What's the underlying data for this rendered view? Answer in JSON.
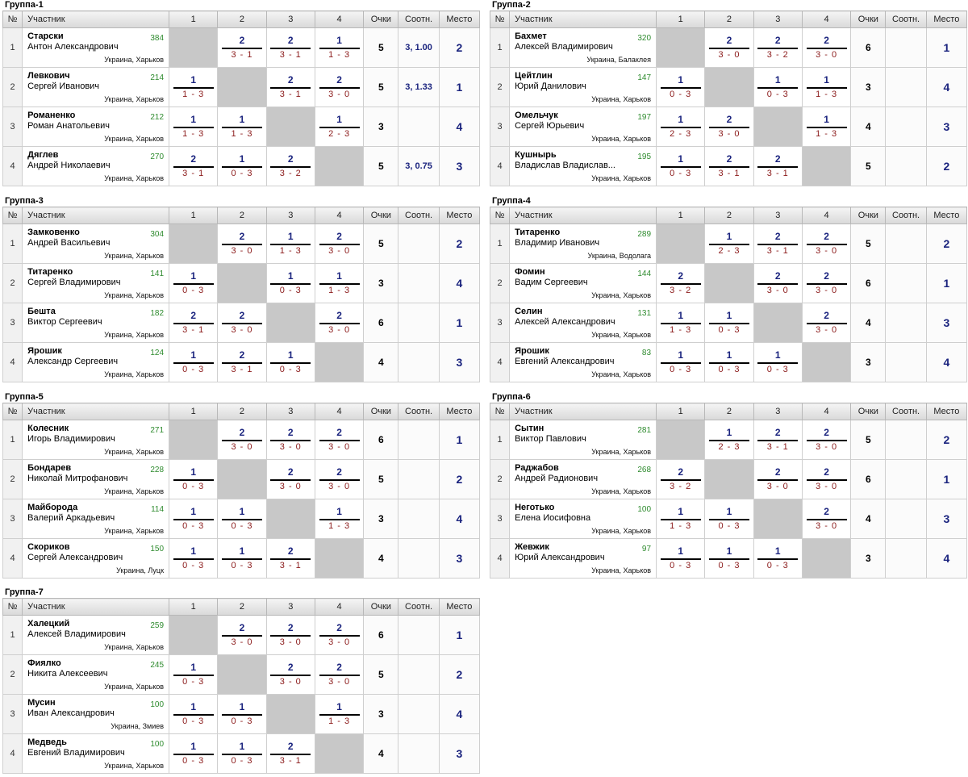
{
  "headers": {
    "num": "№",
    "participant": "Участник",
    "c1": "1",
    "c2": "2",
    "c3": "3",
    "c4": "4",
    "points": "Очки",
    "ratio": "Соотн.",
    "place": "Место"
  },
  "groups": [
    {
      "title": "Группа-1",
      "players": [
        {
          "num": "1",
          "surname": "Старски",
          "name": "Антон Александрович",
          "rating": "384",
          "city": "Украина, Харьков",
          "cells": [
            null,
            {
              "score": "2",
              "result": "3 - 1"
            },
            {
              "score": "2",
              "result": "3 - 1"
            },
            {
              "score": "1",
              "result": "1 - 3"
            }
          ],
          "points": "5",
          "ratio": "3, 1.00",
          "place": "2"
        },
        {
          "num": "2",
          "surname": "Левкович",
          "name": "Сергей Иванович",
          "rating": "214",
          "city": "Украина, Харьков",
          "cells": [
            {
              "score": "1",
              "result": "1 - 3"
            },
            null,
            {
              "score": "2",
              "result": "3 - 1"
            },
            {
              "score": "2",
              "result": "3 - 0"
            }
          ],
          "points": "5",
          "ratio": "3, 1.33",
          "place": "1"
        },
        {
          "num": "3",
          "surname": "Романенко",
          "name": "Роман Анатольевич",
          "rating": "212",
          "city": "Украина, Харьков",
          "cells": [
            {
              "score": "1",
              "result": "1 - 3"
            },
            {
              "score": "1",
              "result": "1 - 3"
            },
            null,
            {
              "score": "1",
              "result": "2 - 3"
            }
          ],
          "points": "3",
          "ratio": "",
          "place": "4"
        },
        {
          "num": "4",
          "surname": "Дяглев",
          "name": "Андрей Николаевич",
          "rating": "270",
          "city": "Украина, Харьков",
          "cells": [
            {
              "score": "2",
              "result": "3 - 1"
            },
            {
              "score": "1",
              "result": "0 - 3"
            },
            {
              "score": "2",
              "result": "3 - 2"
            },
            null
          ],
          "points": "5",
          "ratio": "3, 0.75",
          "place": "3"
        }
      ]
    },
    {
      "title": "Группа-2",
      "players": [
        {
          "num": "1",
          "surname": "Бахмет",
          "name": "Алексей Владимирович",
          "rating": "320",
          "city": "Украина, Балаклея",
          "cells": [
            null,
            {
              "score": "2",
              "result": "3 - 0"
            },
            {
              "score": "2",
              "result": "3 - 2"
            },
            {
              "score": "2",
              "result": "3 - 0"
            }
          ],
          "points": "6",
          "ratio": "",
          "place": "1"
        },
        {
          "num": "2",
          "surname": "Цейтлин",
          "name": "Юрий Данилович",
          "rating": "147",
          "city": "Украина, Харьков",
          "cells": [
            {
              "score": "1",
              "result": "0 - 3"
            },
            null,
            {
              "score": "1",
              "result": "0 - 3"
            },
            {
              "score": "1",
              "result": "1 - 3"
            }
          ],
          "points": "3",
          "ratio": "",
          "place": "4"
        },
        {
          "num": "3",
          "surname": "Омельчук",
          "name": "Сергей Юрьевич",
          "rating": "197",
          "city": "Украина, Харьков",
          "cells": [
            {
              "score": "1",
              "result": "2 - 3"
            },
            {
              "score": "2",
              "result": "3 - 0"
            },
            null,
            {
              "score": "1",
              "result": "1 - 3"
            }
          ],
          "points": "4",
          "ratio": "",
          "place": "3"
        },
        {
          "num": "4",
          "surname": "Кушнырь",
          "name": "Владислав Владислав...",
          "rating": "195",
          "city": "Украина, Харьков",
          "cells": [
            {
              "score": "1",
              "result": "0 - 3"
            },
            {
              "score": "2",
              "result": "3 - 1"
            },
            {
              "score": "2",
              "result": "3 - 1"
            },
            null
          ],
          "points": "5",
          "ratio": "",
          "place": "2"
        }
      ]
    },
    {
      "title": "Группа-3",
      "players": [
        {
          "num": "1",
          "surname": "Замковенко",
          "name": "Андрей Васильевич",
          "rating": "304",
          "city": "Украина, Харьков",
          "cells": [
            null,
            {
              "score": "2",
              "result": "3 - 0"
            },
            {
              "score": "1",
              "result": "1 - 3"
            },
            {
              "score": "2",
              "result": "3 - 0"
            }
          ],
          "points": "5",
          "ratio": "",
          "place": "2"
        },
        {
          "num": "2",
          "surname": "Титаренко",
          "name": "Сергей Владимирович",
          "rating": "141",
          "city": "Украина, Харьков",
          "cells": [
            {
              "score": "1",
              "result": "0 - 3"
            },
            null,
            {
              "score": "1",
              "result": "0 - 3"
            },
            {
              "score": "1",
              "result": "1 - 3"
            }
          ],
          "points": "3",
          "ratio": "",
          "place": "4"
        },
        {
          "num": "3",
          "surname": "Бешта",
          "name": "Виктор Сергеевич",
          "rating": "182",
          "city": "Украина, Харьков",
          "cells": [
            {
              "score": "2",
              "result": "3 - 1"
            },
            {
              "score": "2",
              "result": "3 - 0"
            },
            null,
            {
              "score": "2",
              "result": "3 - 0"
            }
          ],
          "points": "6",
          "ratio": "",
          "place": "1"
        },
        {
          "num": "4",
          "surname": "Ярошик",
          "name": "Александр Сергеевич",
          "rating": "124",
          "city": "Украина, Харьков",
          "cells": [
            {
              "score": "1",
              "result": "0 - 3"
            },
            {
              "score": "2",
              "result": "3 - 1"
            },
            {
              "score": "1",
              "result": "0 - 3"
            },
            null
          ],
          "points": "4",
          "ratio": "",
          "place": "3"
        }
      ]
    },
    {
      "title": "Группа-4",
      "players": [
        {
          "num": "1",
          "surname": "Титаренко",
          "name": "Владимир Иванович",
          "rating": "289",
          "city": "Украина, Водолага",
          "cells": [
            null,
            {
              "score": "1",
              "result": "2 - 3"
            },
            {
              "score": "2",
              "result": "3 - 1"
            },
            {
              "score": "2",
              "result": "3 - 0"
            }
          ],
          "points": "5",
          "ratio": "",
          "place": "2"
        },
        {
          "num": "2",
          "surname": "Фомин",
          "name": "Вадим Сергеевич",
          "rating": "144",
          "city": "Украина, Харьков",
          "cells": [
            {
              "score": "2",
              "result": "3 - 2"
            },
            null,
            {
              "score": "2",
              "result": "3 - 0"
            },
            {
              "score": "2",
              "result": "3 - 0"
            }
          ],
          "points": "6",
          "ratio": "",
          "place": "1"
        },
        {
          "num": "3",
          "surname": "Селин",
          "name": "Алексей Александрович",
          "rating": "131",
          "city": "Украина, Харьков",
          "cells": [
            {
              "score": "1",
              "result": "1 - 3"
            },
            {
              "score": "1",
              "result": "0 - 3"
            },
            null,
            {
              "score": "2",
              "result": "3 - 0"
            }
          ],
          "points": "4",
          "ratio": "",
          "place": "3"
        },
        {
          "num": "4",
          "surname": "Ярошик",
          "name": "Евгений Александрович",
          "rating": "83",
          "city": "Украина, Харьков",
          "cells": [
            {
              "score": "1",
              "result": "0 - 3"
            },
            {
              "score": "1",
              "result": "0 - 3"
            },
            {
              "score": "1",
              "result": "0 - 3"
            },
            null
          ],
          "points": "3",
          "ratio": "",
          "place": "4"
        }
      ]
    },
    {
      "title": "Группа-5",
      "players": [
        {
          "num": "1",
          "surname": "Колесник",
          "name": "Игорь Владимирович",
          "rating": "271",
          "city": "Украина, Харьков",
          "cells": [
            null,
            {
              "score": "2",
              "result": "3 - 0"
            },
            {
              "score": "2",
              "result": "3 - 0"
            },
            {
              "score": "2",
              "result": "3 - 0"
            }
          ],
          "points": "6",
          "ratio": "",
          "place": "1"
        },
        {
          "num": "2",
          "surname": "Бондарев",
          "name": "Николай Митрофанович",
          "rating": "228",
          "city": "Украина, Харьков",
          "cells": [
            {
              "score": "1",
              "result": "0 - 3"
            },
            null,
            {
              "score": "2",
              "result": "3 - 0"
            },
            {
              "score": "2",
              "result": "3 - 0"
            }
          ],
          "points": "5",
          "ratio": "",
          "place": "2"
        },
        {
          "num": "3",
          "surname": "Майборода",
          "name": "Валерий Аркадьевич",
          "rating": "114",
          "city": "Украина, Харьков",
          "cells": [
            {
              "score": "1",
              "result": "0 - 3"
            },
            {
              "score": "1",
              "result": "0 - 3"
            },
            null,
            {
              "score": "1",
              "result": "1 - 3"
            }
          ],
          "points": "3",
          "ratio": "",
          "place": "4"
        },
        {
          "num": "4",
          "surname": "Скориков",
          "name": "Сергей Александрович",
          "rating": "150",
          "city": "Украина, Луцк",
          "cells": [
            {
              "score": "1",
              "result": "0 - 3"
            },
            {
              "score": "1",
              "result": "0 - 3"
            },
            {
              "score": "2",
              "result": "3 - 1"
            },
            null
          ],
          "points": "4",
          "ratio": "",
          "place": "3"
        }
      ]
    },
    {
      "title": "Группа-6",
      "players": [
        {
          "num": "1",
          "surname": "Сытин",
          "name": "Виктор Павлович",
          "rating": "281",
          "city": "Украина, Харьков",
          "cells": [
            null,
            {
              "score": "1",
              "result": "2 - 3"
            },
            {
              "score": "2",
              "result": "3 - 1"
            },
            {
              "score": "2",
              "result": "3 - 0"
            }
          ],
          "points": "5",
          "ratio": "",
          "place": "2"
        },
        {
          "num": "2",
          "surname": "Раджабов",
          "name": "Андрей Радионович",
          "rating": "268",
          "city": "Украина, Харьков",
          "cells": [
            {
              "score": "2",
              "result": "3 - 2"
            },
            null,
            {
              "score": "2",
              "result": "3 - 0"
            },
            {
              "score": "2",
              "result": "3 - 0"
            }
          ],
          "points": "6",
          "ratio": "",
          "place": "1"
        },
        {
          "num": "3",
          "surname": "Неготько",
          "name": "Елена Иосифовна",
          "rating": "100",
          "city": "Украина, Харьков",
          "cells": [
            {
              "score": "1",
              "result": "1 - 3"
            },
            {
              "score": "1",
              "result": "0 - 3"
            },
            null,
            {
              "score": "2",
              "result": "3 - 0"
            }
          ],
          "points": "4",
          "ratio": "",
          "place": "3"
        },
        {
          "num": "4",
          "surname": "Жевжик",
          "name": "Юрий Александрович",
          "rating": "97",
          "city": "Украина, Харьков",
          "cells": [
            {
              "score": "1",
              "result": "0 - 3"
            },
            {
              "score": "1",
              "result": "0 - 3"
            },
            {
              "score": "1",
              "result": "0 - 3"
            },
            null
          ],
          "points": "3",
          "ratio": "",
          "place": "4"
        }
      ]
    },
    {
      "title": "Группа-7",
      "players": [
        {
          "num": "1",
          "surname": "Халецкий",
          "name": "Алексей Владимирович",
          "rating": "259",
          "city": "Украина, Харьков",
          "cells": [
            null,
            {
              "score": "2",
              "result": "3 - 0"
            },
            {
              "score": "2",
              "result": "3 - 0"
            },
            {
              "score": "2",
              "result": "3 - 0"
            }
          ],
          "points": "6",
          "ratio": "",
          "place": "1"
        },
        {
          "num": "2",
          "surname": "Фиялко",
          "name": "Никита Алексеевич",
          "rating": "245",
          "city": "Украина, Харьков",
          "cells": [
            {
              "score": "1",
              "result": "0 - 3"
            },
            null,
            {
              "score": "2",
              "result": "3 - 0"
            },
            {
              "score": "2",
              "result": "3 - 0"
            }
          ],
          "points": "5",
          "ratio": "",
          "place": "2"
        },
        {
          "num": "3",
          "surname": "Мусин",
          "name": "Иван Александрович",
          "rating": "100",
          "city": "Украина, Змиев",
          "cells": [
            {
              "score": "1",
              "result": "0 - 3"
            },
            {
              "score": "1",
              "result": "0 - 3"
            },
            null,
            {
              "score": "1",
              "result": "1 - 3"
            }
          ],
          "points": "3",
          "ratio": "",
          "place": "4"
        },
        {
          "num": "4",
          "surname": "Медведь",
          "name": "Евгений Владимирович",
          "rating": "100",
          "city": "Украина, Харьков",
          "cells": [
            {
              "score": "1",
              "result": "0 - 3"
            },
            {
              "score": "1",
              "result": "0 - 3"
            },
            {
              "score": "2",
              "result": "3 - 1"
            },
            null
          ],
          "points": "4",
          "ratio": "",
          "place": "3"
        }
      ]
    }
  ]
}
